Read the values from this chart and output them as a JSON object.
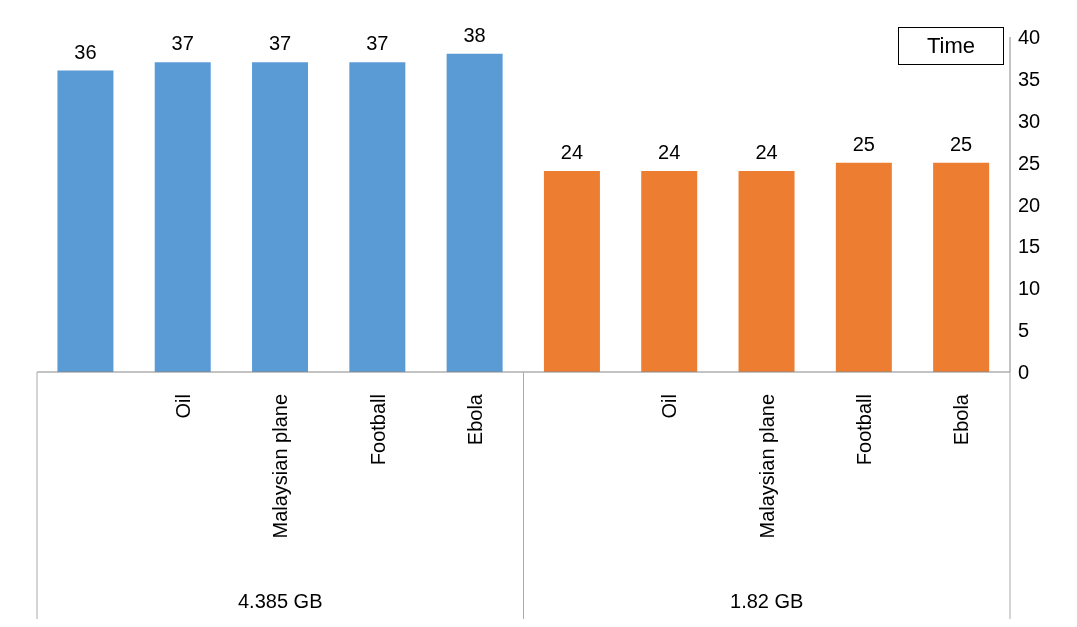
{
  "chart_data": {
    "type": "bar",
    "ylabel": "Time",
    "categories": [
      null,
      "Oil",
      "Malaysian plane",
      "Football",
      "Ebola",
      null,
      "Oil",
      "Malaysian plane",
      "Football",
      "Ebola"
    ],
    "values": [
      36,
      37,
      37,
      37,
      38,
      24,
      24,
      24,
      25,
      25
    ],
    "colors": [
      "#5b9bd5",
      "#5b9bd5",
      "#5b9bd5",
      "#5b9bd5",
      "#5b9bd5",
      "#ed7d31",
      "#ed7d31",
      "#ed7d31",
      "#ed7d31",
      "#ed7d31"
    ],
    "ylim": [
      0,
      40
    ],
    "yticks": [
      0,
      5,
      10,
      15,
      20,
      25,
      30,
      35,
      40
    ],
    "grid": false,
    "data_labels": true,
    "annotations": [
      "4.385 GB",
      "1.82 GB"
    ]
  }
}
